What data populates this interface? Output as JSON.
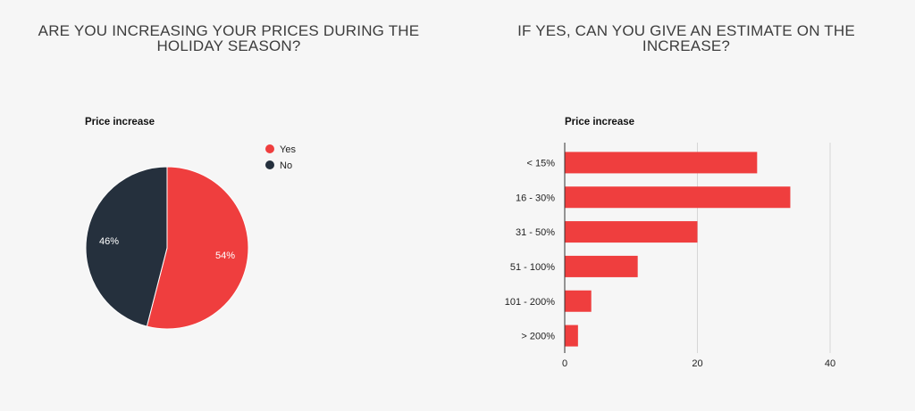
{
  "left": {
    "question": "ARE YOU INCREASING YOUR PRICES DURING THE HOLIDAY SEASON?",
    "question_line1": "ARE YOU INCREASING YOUR PRICES DURING THE",
    "question_line2": "HOLIDAY SEASON?"
  },
  "right": {
    "question": "IF YES, CAN YOU GIVE AN ESTIMATE ON THE INCREASE?",
    "question_line1": "IF YES, CAN YOU GIVE AN ESTIMATE ON THE",
    "question_line2": "INCREASE?"
  },
  "colors": {
    "red": "#ef3e3e",
    "navy": "#25303d",
    "grid": "#d6d6d6",
    "background": "#f6f6f6"
  },
  "chart_data": [
    {
      "type": "pie",
      "title": "Price increase",
      "categories": [
        "Yes",
        "No"
      ],
      "values": [
        54,
        46
      ],
      "labels": [
        "54%",
        "46%"
      ],
      "colors": [
        "#ef3e3e",
        "#25303d"
      ],
      "legend": "top-right"
    },
    {
      "type": "bar",
      "orientation": "horizontal",
      "title": "Price increase",
      "categories": [
        "< 15%",
        "16 - 30%",
        "31 - 50%",
        "51 - 100%",
        "101 - 200%",
        "> 200%"
      ],
      "values": [
        29,
        34,
        20,
        11,
        4,
        2
      ],
      "xlim": [
        0,
        40
      ],
      "xticks": [
        0,
        20,
        40
      ],
      "grid": true,
      "color": "#ef3e3e"
    }
  ]
}
